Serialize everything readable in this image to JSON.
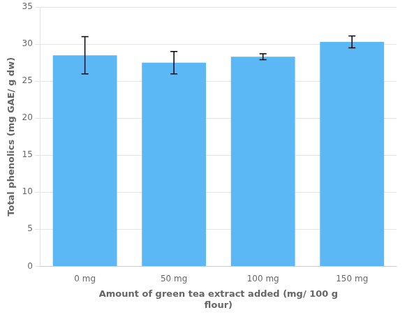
{
  "chart_data": {
    "type": "bar",
    "categories": [
      "0 mg",
      "50 mg",
      "100 mg",
      "150 mg"
    ],
    "values": [
      28.5,
      27.5,
      28.3,
      30.3
    ],
    "errors": [
      2.5,
      1.5,
      0.4,
      0.8
    ],
    "color": "#5BB8F5",
    "xlabel": "Amount of green tea extract added (mg/ 100 g\nflour)",
    "ylabel": "Total phenolics (mg GAE/ g dw)",
    "ylim": [
      0,
      35
    ],
    "yticks": [
      0,
      5,
      10,
      15,
      20,
      25,
      30,
      35
    ],
    "grid": true
  }
}
